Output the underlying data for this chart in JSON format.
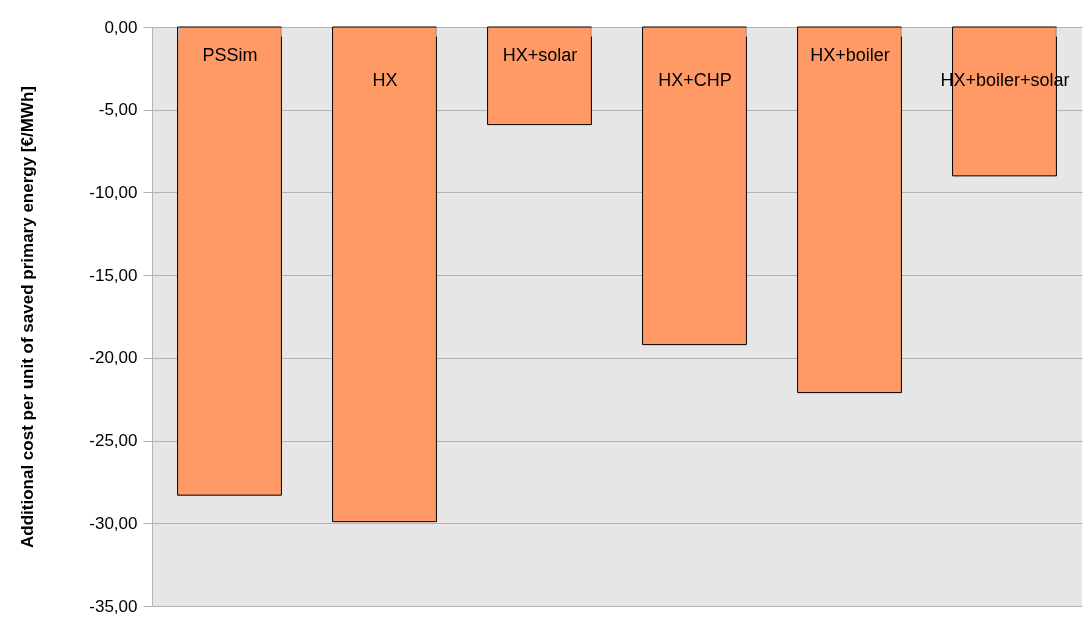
{
  "chart_data": {
    "type": "bar",
    "ylabel": "Additional cost per unit of saved primary energy [€/MWh]",
    "categories": [
      "PSSim",
      "HX",
      "HX+solar",
      "HX+CHP",
      "HX+boiler",
      "HX+boiler+solar"
    ],
    "values": [
      -28.3,
      -29.9,
      -5.9,
      -19.2,
      -22.1,
      -9.0
    ],
    "color": "#ff9966",
    "ylim": [
      -35,
      0
    ],
    "yticks": [
      {
        "value": -35,
        "label": "-35,00"
      },
      {
        "value": -30,
        "label": "-30,00"
      },
      {
        "value": -25,
        "label": "-25,00"
      },
      {
        "value": -20,
        "label": "-20,00"
      },
      {
        "value": -15,
        "label": "-15,00"
      },
      {
        "value": -10,
        "label": "-10,00"
      },
      {
        "value": -5,
        "label": "-5,00"
      },
      {
        "value": 0,
        "label": "0,00"
      }
    ],
    "grid": "y"
  }
}
